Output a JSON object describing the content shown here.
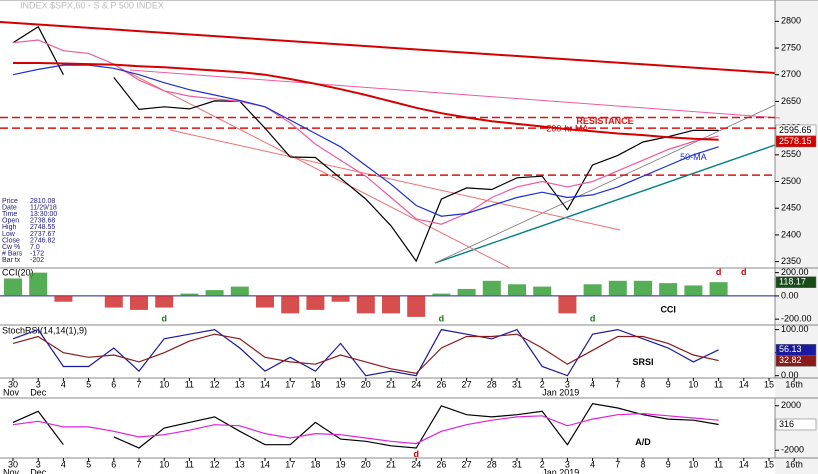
{
  "chart_data": [
    {
      "type": "line",
      "title": "INDEX $SPX,60 - S & P 500 INDEX",
      "info_box": [
        [
          "Price",
          "2810.08"
        ],
        [
          "Date",
          "11/29/18"
        ],
        [
          "Time",
          "13:30:00"
        ],
        [
          "Open",
          "2738.68"
        ],
        [
          "High",
          "2748.55"
        ],
        [
          "Low",
          "2737.67"
        ],
        [
          "Close",
          "2746.82"
        ],
        [
          "Cw %",
          "7.0"
        ],
        [
          "# Bars",
          "-172"
        ],
        [
          "Bar tx",
          "-202"
        ]
      ],
      "ylim": [
        2338,
        2840
      ],
      "yticks": [
        2350,
        2400,
        2450,
        2500,
        2550,
        2600,
        2650,
        2700,
        2750,
        2800
      ],
      "levels": [
        {
          "value": 2620,
          "label": "RESISTANCE"
        },
        {
          "value": 2600
        },
        {
          "value": 2512
        }
      ],
      "level_color": "#e01010",
      "series": [
        {
          "color": "#000000",
          "value_box": true,
          "values": [
            2760,
            2790,
            2700,
            null,
            2695,
            2635,
            2640,
            2636,
            2651,
            2650,
            2600,
            2546,
            2545,
            2506,
            2467,
            2417,
            2351,
            2467,
            2488,
            2485,
            2507,
            2510,
            2447,
            2531,
            2549,
            2574,
            2584,
            2596,
            2595.65,
            null,
            null,
            null
          ]
        },
        {
          "color": "#ee5aa0",
          "values": [
            2760,
            2765,
            2745,
            2740,
            2720,
            2690,
            2670,
            2660,
            2655,
            2650,
            2640,
            2610,
            2570,
            2540,
            2510,
            2470,
            2430,
            2420,
            2440,
            2470,
            2490,
            2500,
            2490,
            2500,
            2520,
            2540,
            2560,
            2575,
            2585,
            null,
            null,
            null
          ]
        },
        {
          "name": "50-MA",
          "color": "#1c2fd0",
          "values": [
            2700,
            2710,
            2718,
            2718,
            2712,
            2700,
            2685,
            2672,
            2662,
            2652,
            2640,
            2615,
            2590,
            2565,
            2530,
            2495,
            2455,
            2435,
            2440,
            2455,
            2470,
            2480,
            2470,
            2475,
            2490,
            2510,
            2530,
            2550,
            2565,
            null,
            null,
            null
          ]
        },
        {
          "name": "200-hr MA",
          "color": "#d40000",
          "value_box": true,
          "values": [
            2722,
            2722,
            2721,
            2720,
            2719,
            2716,
            2714,
            2711,
            2708,
            2705,
            2700,
            2692,
            2683,
            2673,
            2662,
            2650,
            2638,
            2628,
            2620,
            2613,
            2608,
            2603,
            2598,
            2594,
            2590,
            2587,
            2583,
            2580,
            2578.15,
            null,
            null,
            null
          ]
        }
      ]
    },
    {
      "type": "bar",
      "title": "CCI(20)",
      "ylim": [
        -250,
        240
      ],
      "yticks": [
        {
          "value": 200,
          "label": "200.00"
        },
        {
          "value": 0,
          "label": "0.00"
        },
        {
          "value": -200,
          "label": "-200.00"
        }
      ],
      "pos_color": "#2a9a2a",
      "neg_color": "#cc2222",
      "annotations": [
        "d",
        "d",
        "d",
        "d",
        "d"
      ],
      "series": [
        {
          "name": "CCI",
          "color": "#1a4a1a",
          "value_box": true,
          "values": [
            150,
            200,
            -50,
            null,
            -100,
            -120,
            -100,
            20,
            50,
            80,
            -100,
            -150,
            -120,
            -50,
            -150,
            -150,
            -180,
            20,
            60,
            130,
            100,
            80,
            -150,
            100,
            130,
            130,
            110,
            90,
            118.17,
            null,
            null,
            null
          ]
        }
      ]
    },
    {
      "type": "line",
      "title": "StochRSI(14,14(1),9)",
      "ylim": [
        -5,
        110
      ],
      "yticks": [
        {
          "value": 100,
          "label": "100.00"
        },
        {
          "value": 50,
          "label": "50.00"
        },
        {
          "value": 0,
          "label": "0.00"
        }
      ],
      "categories": [
        "30",
        "3",
        "4",
        "5",
        "6",
        "7",
        "10",
        "11",
        "12",
        "13",
        "14",
        "17",
        "18",
        "19",
        "20",
        "21",
        "24",
        "26",
        "27",
        "28",
        "31",
        "2",
        "3",
        "4",
        "7",
        "8",
        "9",
        "10",
        "11",
        "14",
        "15",
        "16th"
      ],
      "months": [
        "Nov",
        "Dec",
        null,
        null,
        null,
        null,
        null,
        null,
        null,
        null,
        null,
        null,
        null,
        null,
        null,
        null,
        null,
        null,
        null,
        null,
        null,
        "Jan 2019",
        null,
        null,
        null,
        null,
        null,
        null,
        null,
        null,
        null,
        null
      ],
      "series": [
        {
          "name": "SRSI",
          "color": "#1a1aa0",
          "value_box": true,
          "values": [
            80,
            100,
            20,
            20,
            60,
            10,
            80,
            90,
            100,
            60,
            10,
            40,
            10,
            70,
            0,
            10,
            0,
            100,
            90,
            80,
            100,
            20,
            0,
            90,
            100,
            80,
            60,
            30,
            56.13,
            null,
            null,
            null
          ]
        },
        {
          "color": "#8b1a1a",
          "value_box": true,
          "values": [
            70,
            85,
            50,
            40,
            45,
            30,
            50,
            75,
            90,
            80,
            40,
            30,
            25,
            45,
            30,
            15,
            5,
            60,
            85,
            85,
            90,
            60,
            25,
            55,
            85,
            85,
            70,
            45,
            32.82,
            null,
            null,
            null
          ]
        }
      ]
    },
    {
      "type": "line",
      "ylim": [
        -2700,
        2700
      ],
      "yticks": [
        2000,
        -2000
      ],
      "annotations": [
        "d"
      ],
      "categories": [
        "30",
        "3",
        "4",
        "5",
        "6",
        "7",
        "10",
        "11",
        "12",
        "13",
        "14",
        "17",
        "18",
        "19",
        "20",
        "21",
        "24",
        "26",
        "27",
        "28",
        "31",
        "2",
        "3",
        "4",
        "7",
        "8",
        "9",
        "10",
        "11",
        "14",
        "15",
        "16th"
      ],
      "months": [
        "Nov",
        "Dec",
        null,
        null,
        null,
        null,
        null,
        null,
        null,
        null,
        null,
        null,
        null,
        null,
        null,
        null,
        null,
        null,
        null,
        null,
        null,
        "Jan 2019",
        null,
        null,
        null,
        null,
        null,
        null,
        null,
        null,
        null,
        null
      ],
      "series": [
        {
          "name": "A/D",
          "color": "#000000",
          "value_box": true,
          "values": [
            500,
            1500,
            -1500,
            null,
            -800,
            -1800,
            0,
            500,
            1000,
            -300,
            -1500,
            -1500,
            500,
            -1000,
            -1200,
            -1600,
            -1800,
            2000,
            1200,
            1000,
            1200,
            1500,
            -1500,
            2200,
            1800,
            1200,
            800,
            700,
            316,
            null,
            null,
            null
          ]
        },
        {
          "color": "#e020e0",
          "values": [
            300,
            600,
            100,
            100,
            -300,
            -800,
            -600,
            -200,
            300,
            200,
            -500,
            -900,
            -500,
            -600,
            -900,
            -1200,
            -1400,
            -300,
            300,
            700,
            1000,
            1100,
            200,
            800,
            1200,
            1300,
            1100,
            900,
            700,
            null,
            null,
            null
          ]
        }
      ]
    }
  ]
}
